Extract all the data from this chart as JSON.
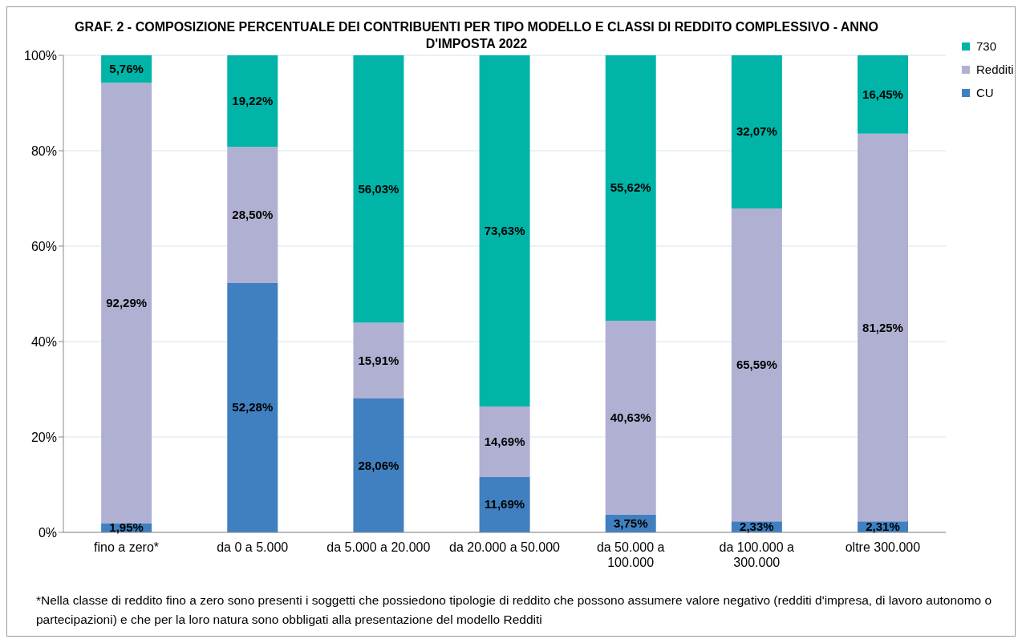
{
  "chart_data": {
    "type": "bar",
    "title": "GRAF. 2 - COMPOSIZIONE PERCENTUALE DEI CONTRIBUENTI PER TIPO MODELLO E CLASSI DI REDDITO COMPLESSIVO - ANNO D'IMPOSTA 2022",
    "categories": [
      "fino a zero*",
      "da 0 a 5.000",
      "da 5.000 a 20.000",
      "da 20.000 a 50.000",
      "da 50.000 a 100.000",
      "da 100.000 a 300.000",
      "oltre 300.000"
    ],
    "stacked": true,
    "series": [
      {
        "name": "CU",
        "color": "#4080c0",
        "values": [
          1.95,
          52.28,
          28.06,
          11.69,
          3.75,
          2.33,
          2.31
        ],
        "value_labels": [
          "1,95%",
          "52,28%",
          "28,06%",
          "11,69%",
          "3,75%",
          "2,33%",
          "2,31%"
        ]
      },
      {
        "name": "Redditi",
        "color": "#b0b0d2",
        "values": [
          92.29,
          28.5,
          15.91,
          14.69,
          40.63,
          65.59,
          81.25
        ],
        "value_labels": [
          "92,29%",
          "28,50%",
          "15,91%",
          "14,69%",
          "40,63%",
          "65,59%",
          "81,25%"
        ]
      },
      {
        "name": "730",
        "color": "#00b4a8",
        "values": [
          5.76,
          19.22,
          56.03,
          73.63,
          55.62,
          32.07,
          16.45
        ],
        "value_labels": [
          "5,76%",
          "19,22%",
          "56,03%",
          "73,63%",
          "55,62%",
          "32,07%",
          "16,45%"
        ]
      }
    ],
    "ylim": [
      0,
      100
    ],
    "yticks": [
      {
        "value": 0,
        "label": "0%"
      },
      {
        "value": 20,
        "label": "20%"
      },
      {
        "value": 40,
        "label": "40%"
      },
      {
        "value": 60,
        "label": "60%"
      },
      {
        "value": 80,
        "label": "80%"
      },
      {
        "value": 100,
        "label": "100%"
      }
    ],
    "grid": "y",
    "legend": "top right",
    "annotations": [
      "*Nella classe di reddito fino a zero sono presenti i soggetti che possiedono tipologie di reddito che possono assumere valore negativo (redditi d'impresa, di lavoro autonomo o partecipazioni) e che per la loro natura sono obbligati alla presentazione del modello Redditi"
    ]
  }
}
